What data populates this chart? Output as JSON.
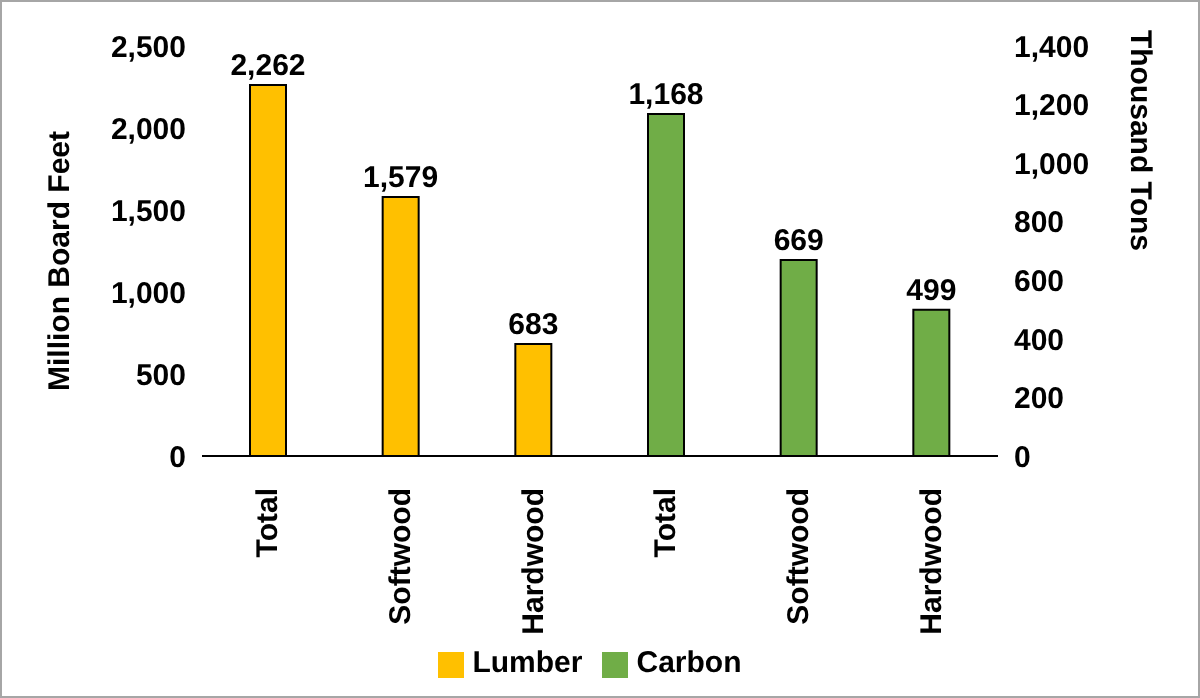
{
  "chart_data": {
    "type": "bar",
    "categories": [
      "Total",
      "Softwood",
      "Hardwood",
      "Total",
      "Softwood",
      "Hardwood"
    ],
    "ylabel": "Million Board Feet",
    "y2label": "Thousand Tons",
    "series": [
      {
        "name": "Lumber",
        "color": "#ffc000",
        "values": [
          2262,
          1579,
          683,
          null,
          null,
          null
        ],
        "value_labels": [
          "2,262",
          "1,579",
          "683",
          null,
          null,
          null
        ]
      },
      {
        "name": "Carbon",
        "color": "#70ad47",
        "axis": "y2",
        "values": [
          null,
          null,
          null,
          1168,
          669,
          499
        ],
        "value_labels": [
          null,
          null,
          null,
          "1,168",
          "669",
          "499"
        ]
      }
    ],
    "ylim": [
      0,
      2500
    ],
    "yticks": [
      0,
      {
        "value": 500,
        "label": "500"
      },
      {
        "value": 1000,
        "label": "1,000"
      },
      {
        "value": 1500,
        "label": "1,500"
      },
      {
        "value": 2000,
        "label": "2,000"
      },
      {
        "value": 2500,
        "label": "2,500"
      }
    ],
    "y2lim": [
      0,
      1400
    ],
    "y2ticks": [
      0,
      200,
      400,
      600,
      800,
      {
        "value": 1000,
        "label": "1,000"
      },
      {
        "value": 1200,
        "label": "1,200"
      },
      {
        "value": 1400,
        "label": "1,400"
      }
    ],
    "legend": "bottom"
  }
}
